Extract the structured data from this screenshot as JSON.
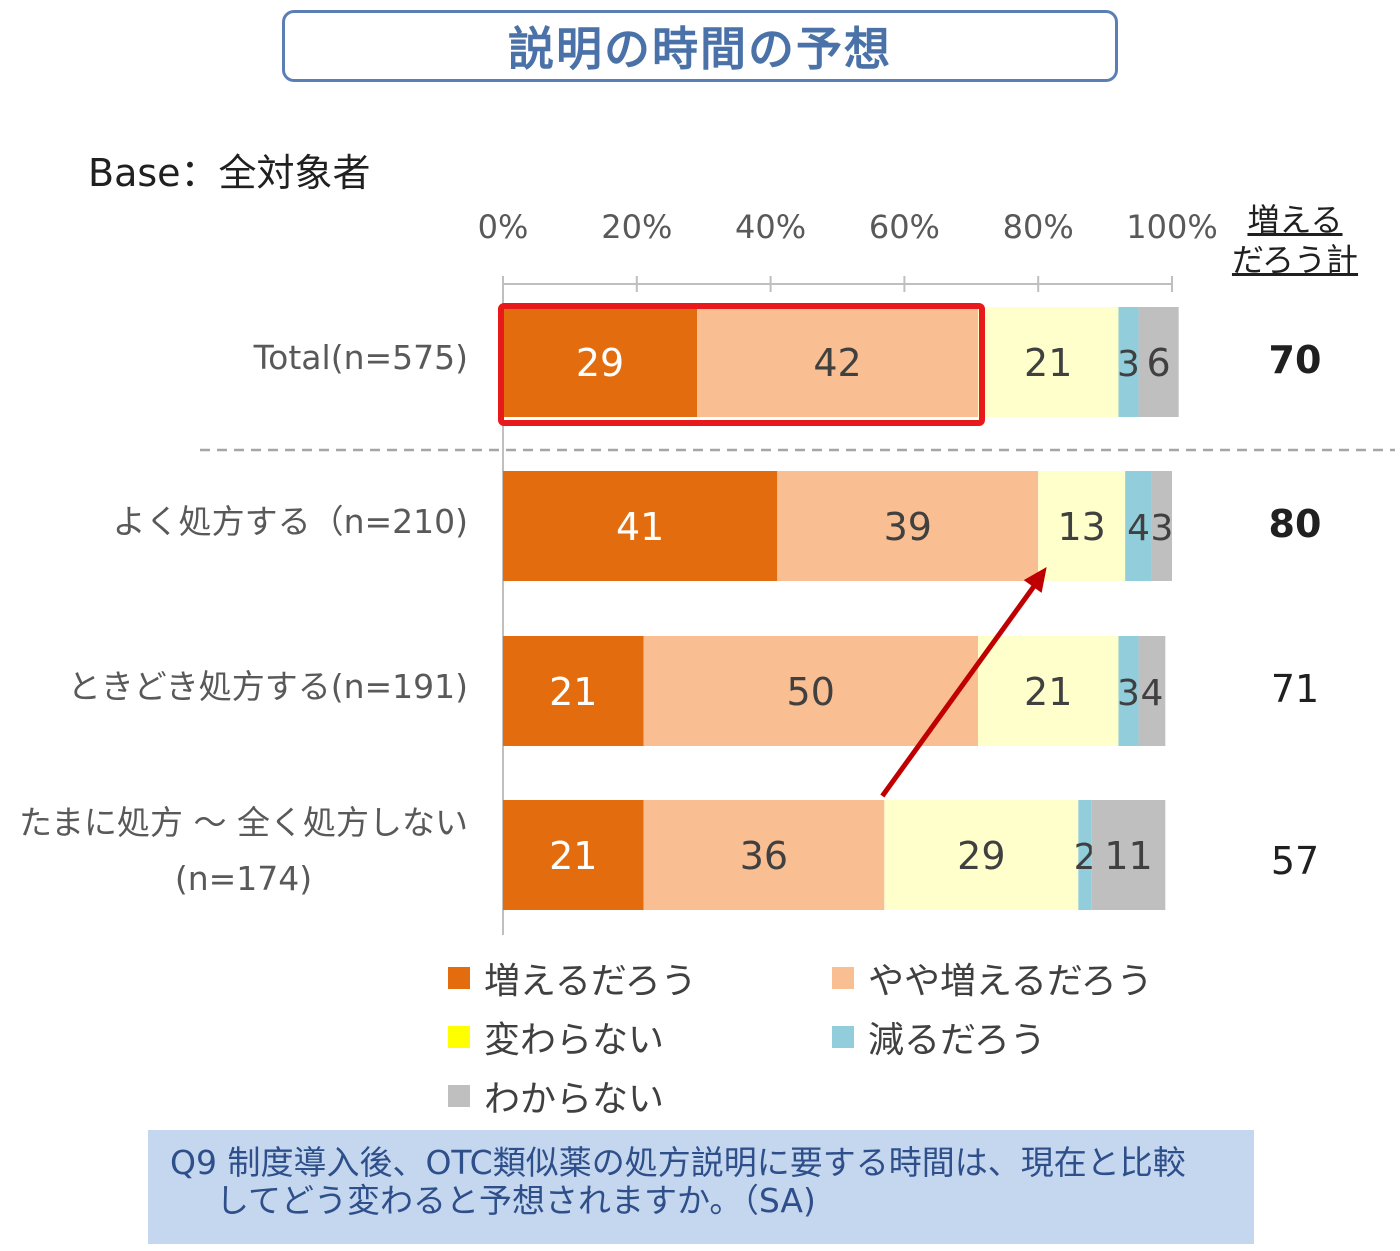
{
  "title": "説明の時間の予想",
  "base": "Base：全対象者",
  "sum_header": [
    "増える",
    "だろう計"
  ],
  "note": {
    "line1": "Q9  制度導入後、OTC類似薬の処方説明に要する時間は、現在と比較",
    "line2": "してどう変わると予想されますか。（SA)"
  },
  "colors": {
    "increase": "#e36c0f",
    "slightly_increase": "#f9be92",
    "no_change": "#ffffcc",
    "decrease": "#92cddc",
    "unknown": "#bfbfbf",
    "highlight": "#e8191a",
    "arrow": "#c00000"
  },
  "chart_data": {
    "type": "bar",
    "orientation": "horizontal",
    "stacked": true,
    "xlim": [
      0,
      100
    ],
    "x_ticks": [
      "0%",
      "20%",
      "40%",
      "60%",
      "80%",
      "100%"
    ],
    "categories": [
      {
        "label": [
          "Total(n=575)"
        ],
        "sum": 70,
        "sum_bold": true
      },
      {
        "label": [
          "よく処方する（n=210)"
        ],
        "sum": 80,
        "sum_bold": true
      },
      {
        "label": [
          "ときどき処方する(n=191)"
        ],
        "sum": 71,
        "sum_bold": false
      },
      {
        "label": [
          "たまに処方 ～ 全く処方しない",
          "(n=174)"
        ],
        "sum": 57,
        "sum_bold": false
      }
    ],
    "series": [
      {
        "name": "増えるだろう",
        "color_key": "increase",
        "values": [
          29,
          41,
          21,
          21
        ],
        "label_color": "#ffffff"
      },
      {
        "name": "やや増えるだろう",
        "color_key": "slightly_increase",
        "values": [
          42,
          39,
          50,
          36
        ],
        "label_color": "#404040"
      },
      {
        "name": "変わらない",
        "color_key": "no_change",
        "values": [
          21,
          13,
          21,
          29
        ],
        "label_color": "#404040"
      },
      {
        "name": "減るだろう",
        "color_key": "decrease",
        "values": [
          3,
          4,
          3,
          2
        ],
        "label_color": "#404040"
      },
      {
        "name": "わからない",
        "color_key": "unknown",
        "values": [
          6,
          3,
          4,
          11
        ],
        "label_color": "#404040"
      }
    ],
    "legend_position": "bottom",
    "annotations": [
      "Total row 増える+やや増える highlighted with red box",
      "red arrow from 4th row to 2nd row 変わらない segment"
    ]
  }
}
